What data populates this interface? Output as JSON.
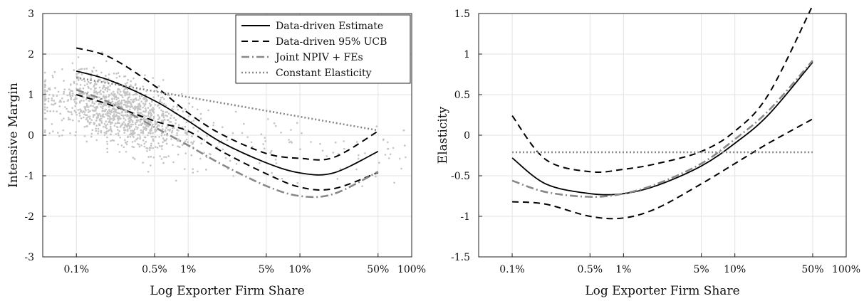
{
  "chart_data": [
    {
      "type": "line",
      "xscale": "log",
      "xlabel": "Log Exporter Firm Share",
      "ylabel": "Intensive Margin",
      "xlim": [
        0.05,
        100
      ],
      "ylim": [
        -3,
        3
      ],
      "x_ticks": [
        0.1,
        0.5,
        1,
        5,
        10,
        50,
        100
      ],
      "x_tick_labels": [
        "0.1%",
        "0.5%",
        "1%",
        "5%",
        "10%",
        "50%",
        "100%"
      ],
      "y_ticks": [
        -3,
        -2,
        -1,
        0,
        1,
        2,
        3
      ],
      "y_tick_labels": [
        "-3",
        "-2",
        "-1",
        "0",
        "1",
        "2",
        "3"
      ],
      "grid": true,
      "legend_position": "top-right",
      "scatter": {
        "color": "#c4c4c4",
        "count": 1400,
        "description_x_range": [
          0.05,
          100
        ],
        "description_center_line": [
          [
            0.1,
            0.9
          ],
          [
            1,
            0.1
          ],
          [
            10,
            -0.3
          ],
          [
            50,
            -0.5
          ]
        ]
      },
      "series": [
        {
          "name": "Data-driven Estimate",
          "style": "solid",
          "color": "#000000",
          "x": [
            0.1,
            0.2,
            0.5,
            1,
            2,
            5,
            10,
            20,
            50
          ],
          "y": [
            1.58,
            1.35,
            0.85,
            0.35,
            -0.18,
            -0.68,
            -0.93,
            -0.93,
            -0.4
          ]
        },
        {
          "name": "Data-driven 95% UCB",
          "style": "dashed",
          "color": "#000000",
          "x": [
            0.1,
            0.2,
            0.5,
            1,
            2,
            5,
            10,
            20,
            50
          ],
          "y": [
            2.15,
            1.92,
            1.22,
            0.55,
            0.02,
            -0.45,
            -0.57,
            -0.55,
            0.1
          ]
        },
        {
          "name": "",
          "style": "dashed",
          "color": "#000000",
          "x": [
            0.1,
            0.2,
            0.5,
            1,
            2,
            5,
            10,
            20,
            50
          ],
          "y": [
            1.0,
            0.75,
            0.35,
            0.1,
            -0.4,
            -0.95,
            -1.28,
            -1.32,
            -0.92
          ]
        },
        {
          "name": "Joint NPIV + FEs",
          "style": "dash-dot",
          "color": "#888888",
          "x": [
            0.1,
            0.2,
            0.5,
            1,
            2,
            5,
            10,
            20,
            50
          ],
          "y": [
            1.12,
            0.8,
            0.2,
            -0.25,
            -0.72,
            -1.25,
            -1.5,
            -1.45,
            -0.9
          ]
        },
        {
          "name": "Constant Elasticity",
          "style": "dotted",
          "color": "#888888",
          "x": [
            0.1,
            50
          ],
          "y": [
            1.42,
            0.12
          ]
        }
      ]
    },
    {
      "type": "line",
      "xscale": "log",
      "xlabel": "Log Exporter Firm Share",
      "ylabel": "Elasticity",
      "xlim": [
        0.05,
        100
      ],
      "ylim": [
        -1.5,
        1.5
      ],
      "x_ticks": [
        0.1,
        0.5,
        1,
        5,
        10,
        50,
        100
      ],
      "x_tick_labels": [
        "0.1%",
        "0.5%",
        "1%",
        "5%",
        "10%",
        "50%",
        "100%"
      ],
      "y_ticks": [
        -1.5,
        -1,
        -0.5,
        0,
        0.5,
        1,
        1.5
      ],
      "y_tick_labels": [
        "-1.5",
        "-1",
        "-0.5",
        "0",
        "0.5",
        "1",
        "1.5"
      ],
      "grid": true,
      "series": [
        {
          "name": "Data-driven Estimate",
          "style": "solid",
          "color": "#000000",
          "x": [
            0.1,
            0.2,
            0.5,
            1,
            2,
            5,
            10,
            20,
            50
          ],
          "y": [
            -0.28,
            -0.6,
            -0.72,
            -0.72,
            -0.62,
            -0.38,
            -0.1,
            0.25,
            0.9
          ]
        },
        {
          "name": "Data-driven 95% UCB",
          "style": "dashed",
          "color": "#000000",
          "x": [
            0.1,
            0.2,
            0.5,
            1,
            2,
            5,
            10,
            20,
            50
          ],
          "y": [
            0.24,
            -0.3,
            -0.45,
            -0.42,
            -0.35,
            -0.2,
            0.05,
            0.5,
            1.6
          ]
        },
        {
          "name": "",
          "style": "dashed",
          "color": "#000000",
          "x": [
            0.1,
            0.2,
            0.5,
            1,
            2,
            5,
            10,
            20,
            50
          ],
          "y": [
            -0.82,
            -0.85,
            -1.0,
            -1.02,
            -0.9,
            -0.6,
            -0.35,
            -0.1,
            0.2
          ]
        },
        {
          "name": "Joint NPIV + FEs",
          "style": "dash-dot",
          "color": "#888888",
          "x": [
            0.1,
            0.2,
            0.5,
            1,
            2,
            5,
            10,
            20,
            50
          ],
          "y": [
            -0.56,
            -0.7,
            -0.76,
            -0.72,
            -0.6,
            -0.35,
            -0.05,
            0.3,
            0.92
          ]
        },
        {
          "name": "Constant Elasticity",
          "style": "dotted",
          "color": "#888888",
          "x": [
            0.1,
            50
          ],
          "y": [
            -0.21,
            -0.21
          ]
        }
      ]
    }
  ]
}
